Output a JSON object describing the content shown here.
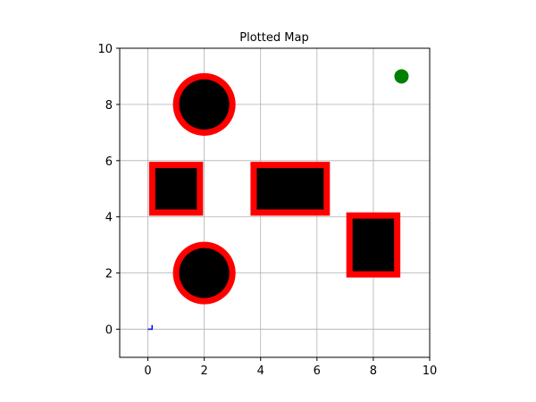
{
  "chart_data": {
    "type": "scatter",
    "title": "Plotted Map",
    "xlabel": "",
    "ylabel": "",
    "xlim": [
      -1,
      10
    ],
    "ylim": [
      -1,
      10
    ],
    "grid": true,
    "x_ticks": [
      0,
      2,
      4,
      6,
      8,
      10
    ],
    "y_ticks": [
      0,
      2,
      4,
      6,
      8,
      10
    ],
    "obstacles": [
      {
        "shape": "circle",
        "cx": 2,
        "cy": 8,
        "r": 1.0,
        "fill": "#000000",
        "edge": "#ff0000"
      },
      {
        "shape": "circle",
        "cx": 2,
        "cy": 2,
        "r": 1.0,
        "fill": "#000000",
        "edge": "#ff0000"
      },
      {
        "shape": "rect",
        "x0": 0.2,
        "y0": 4.2,
        "x1": 1.8,
        "y1": 5.8,
        "fill": "#000000",
        "edge": "#ff0000"
      },
      {
        "shape": "rect",
        "x0": 3.8,
        "y0": 4.2,
        "x1": 6.3,
        "y1": 5.8,
        "fill": "#000000",
        "edge": "#ff0000"
      },
      {
        "shape": "rect",
        "x0": 7.2,
        "y0": 2.0,
        "x1": 8.8,
        "y1": 4.0,
        "fill": "#000000",
        "edge": "#ff0000"
      }
    ],
    "goal": {
      "x": 9,
      "y": 9,
      "color": "#008000"
    },
    "path": {
      "points": [
        [
          0,
          0
        ],
        [
          0.15,
          0
        ],
        [
          0.15,
          0.15
        ]
      ],
      "color": "#0000ff"
    }
  }
}
